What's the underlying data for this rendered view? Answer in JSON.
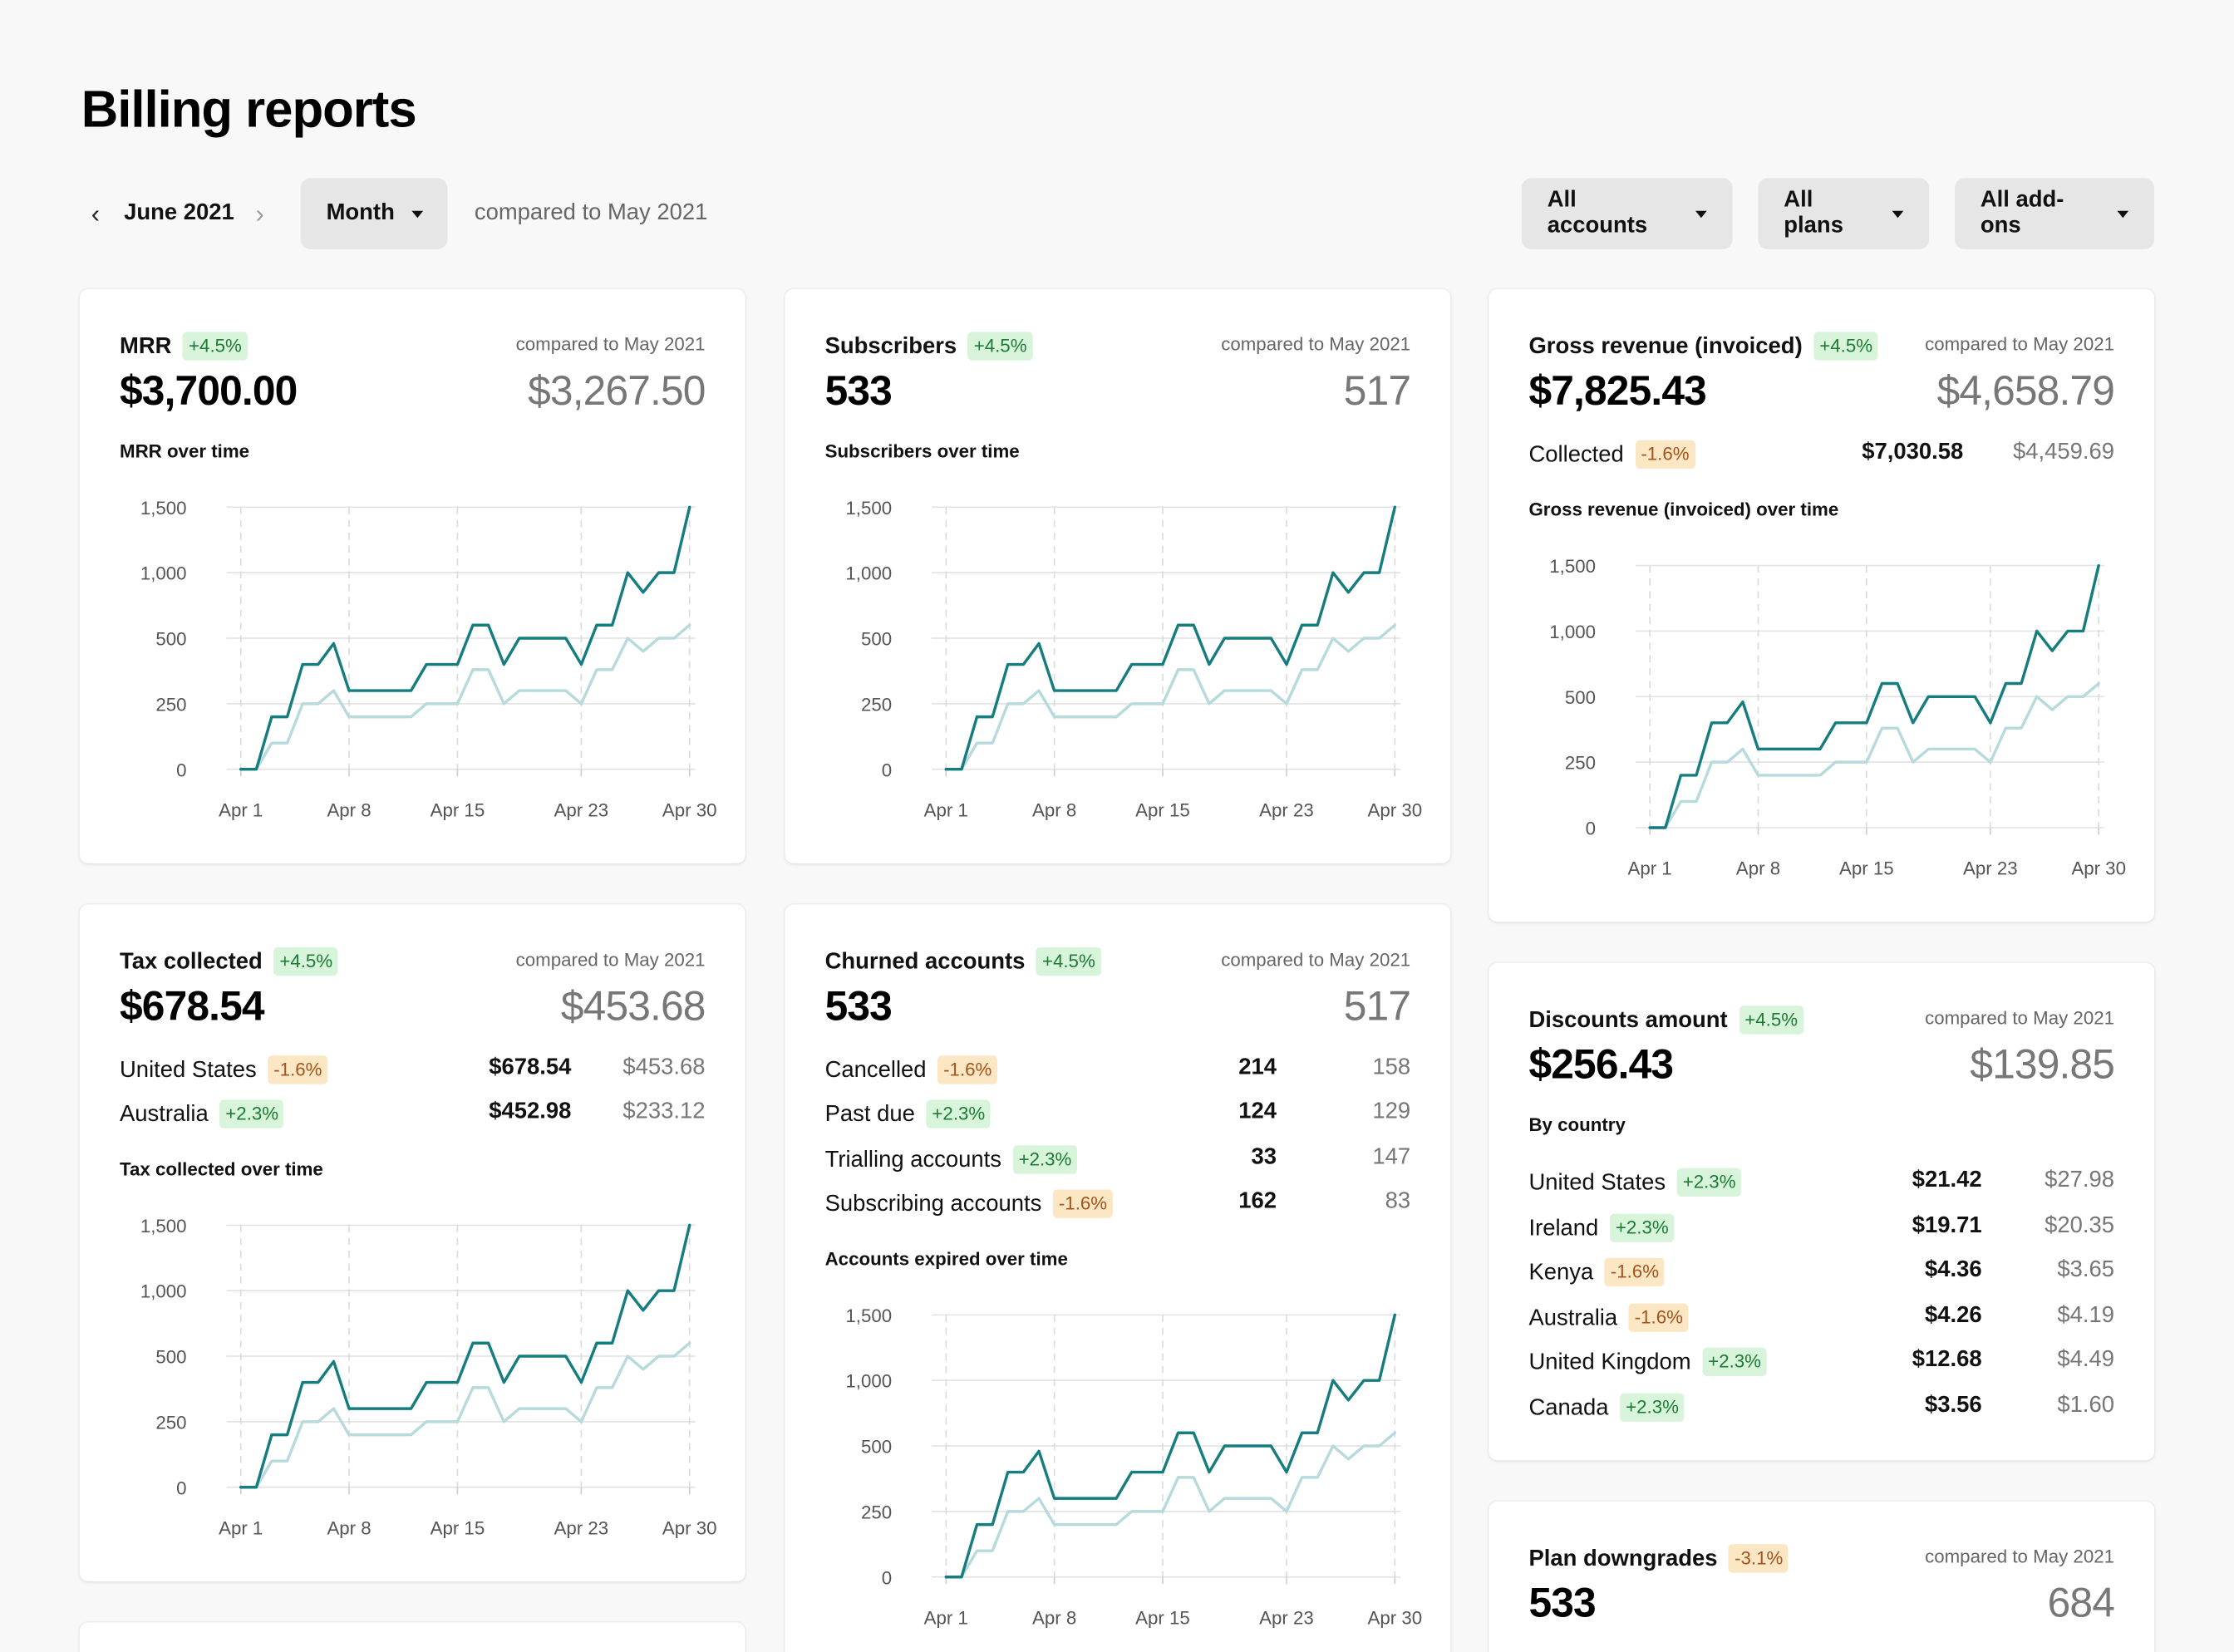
{
  "page": {
    "title": "Billing reports"
  },
  "toolbar": {
    "month": "June 2021",
    "prev_icon": "chevron-left-icon",
    "next_icon": "chevron-right-icon",
    "period": "Month",
    "compared": "compared to May 2021",
    "filters": [
      "All accounts",
      "All plans",
      "All add-ons"
    ]
  },
  "colors": {
    "current": "#167d7f",
    "previous": "#b7dadd",
    "pos_badge": "#d8f5dc",
    "neg_badge": "#fbe7c4"
  },
  "cards": {
    "mrr": {
      "title": "MRR",
      "badge": "+4.5%",
      "compared": "compared to May 2021",
      "value": "$3,700.00",
      "prev": "$3,267.50",
      "chart_title": "MRR over time"
    },
    "subscribers": {
      "title": "Subscribers",
      "badge": "+4.5%",
      "compared": "compared to May 2021",
      "value": "533",
      "prev": "517",
      "chart_title": "Subscribers over time"
    },
    "gross": {
      "title": "Gross revenue (invoiced)",
      "badge": "+4.5%",
      "compared": "compared to May 2021",
      "value": "$7,825.43",
      "prev": "$4,658.79",
      "collected": {
        "label": "Collected",
        "badge": "-1.6%",
        "cur": "$7,030.58",
        "prev": "$4,459.69"
      },
      "chart_title": "Gross revenue (invoiced) over time"
    },
    "tax": {
      "title": "Tax collected",
      "badge": "+4.5%",
      "compared": "compared to May 2021",
      "value": "$678.54",
      "prev": "$453.68",
      "rows": [
        {
          "label": "United States",
          "badge": "-1.6%",
          "cur": "$678.54",
          "prev": "$453.68"
        },
        {
          "label": "Australia",
          "badge": "+2.3%",
          "cur": "$452.98",
          "prev": "$233.12"
        }
      ],
      "chart_title": "Tax collected over time"
    },
    "churned": {
      "title": "Churned accounts",
      "badge": "+4.5%",
      "compared": "compared to May 2021",
      "value": "533",
      "prev": "517",
      "rows": [
        {
          "label": "Cancelled",
          "badge": "-1.6%",
          "cur": "214",
          "prev": "158"
        },
        {
          "label": "Past due",
          "badge": "+2.3%",
          "cur": "124",
          "prev": "129"
        },
        {
          "label": "Trialling accounts",
          "badge": "+2.3%",
          "cur": "33",
          "prev": "147"
        },
        {
          "label": "Subscribing accounts",
          "badge": "-1.6%",
          "cur": "162",
          "prev": "83"
        }
      ],
      "chart_title": "Accounts expired over time"
    },
    "discounts": {
      "title": "Discounts amount",
      "badge": "+4.5%",
      "compared": "compared to May 2021",
      "value": "$256.43",
      "prev": "$139.85",
      "sub_title": "By country",
      "rows": [
        {
          "label": "United States",
          "badge": "+2.3%",
          "cur": "$21.42",
          "prev": "$27.98"
        },
        {
          "label": "Ireland",
          "badge": "+2.3%",
          "cur": "$19.71",
          "prev": "$20.35"
        },
        {
          "label": "Kenya",
          "badge": "-1.6%",
          "cur": "$4.36",
          "prev": "$3.65"
        },
        {
          "label": "Australia",
          "badge": "-1.6%",
          "cur": "$4.26",
          "prev": "$4.19"
        },
        {
          "label": "United Kingdom",
          "badge": "+2.3%",
          "cur": "$12.68",
          "prev": "$4.49"
        },
        {
          "label": "Canada",
          "badge": "+2.3%",
          "cur": "$3.56",
          "prev": "$1.60"
        }
      ]
    },
    "downgrades": {
      "title": "Plan downgrades",
      "badge": "-3.1%",
      "compared": "compared to May 2021",
      "value": "533",
      "prev": "684"
    }
  },
  "chart_data": {
    "type": "line",
    "x": [
      "Apr 1",
      "Apr 2",
      "Apr 3",
      "Apr 4",
      "Apr 5",
      "Apr 6",
      "Apr 7",
      "Apr 8",
      "Apr 9",
      "Apr 10",
      "Apr 11",
      "Apr 12",
      "Apr 13",
      "Apr 14",
      "Apr 15",
      "Apr 16",
      "Apr 17",
      "Apr 18",
      "Apr 19",
      "Apr 20",
      "Apr 21",
      "Apr 22",
      "Apr 23",
      "Apr 24",
      "Apr 25",
      "Apr 26",
      "Apr 27",
      "Apr 28",
      "Apr 29",
      "Apr 30"
    ],
    "y_ticks": [
      0,
      250,
      500,
      1000,
      1500
    ],
    "y_tick_labels": [
      "0",
      "250",
      "500",
      "1,000",
      "1,500"
    ],
    "x_tick_labels": [
      "Apr 1",
      "Apr 8",
      "Apr 15",
      "Apr 23",
      "Apr 30"
    ],
    "series": [
      {
        "values": [
          0,
          0,
          200,
          200,
          400,
          400,
          480,
          300,
          300,
          300,
          300,
          300,
          400,
          400,
          400,
          600,
          600,
          400,
          500,
          500,
          500,
          500,
          400,
          600,
          600,
          1000,
          850,
          1000,
          1000,
          1500
        ]
      },
      {
        "values": [
          0,
          0,
          100,
          100,
          250,
          250,
          300,
          200,
          200,
          200,
          200,
          200,
          250,
          250,
          250,
          380,
          380,
          250,
          300,
          300,
          300,
          300,
          250,
          380,
          380,
          500,
          450,
          500,
          500,
          600
        ]
      }
    ]
  }
}
